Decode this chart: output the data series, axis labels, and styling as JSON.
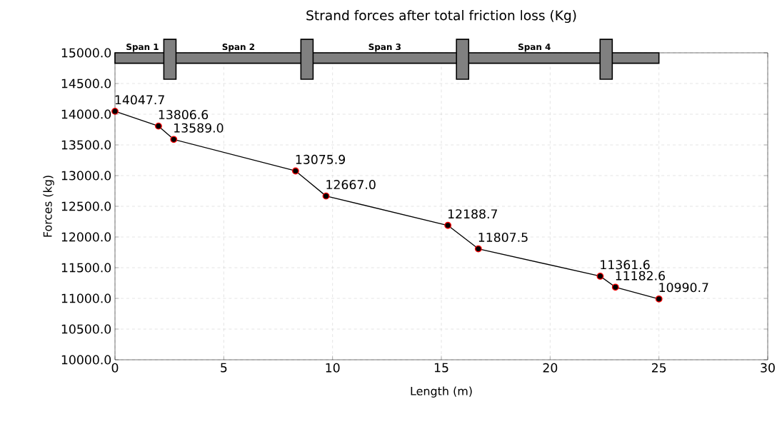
{
  "chart_data": {
    "type": "line",
    "title": "Strand forces after total friction loss (Kg)",
    "xlabel": "Length (m)",
    "ylabel": "Forces (kg)",
    "x": [
      0,
      2.0,
      2.7,
      8.3,
      9.7,
      15.3,
      16.7,
      22.3,
      23.0,
      25.0
    ],
    "values": [
      14047.7,
      13806.6,
      13589.0,
      13075.9,
      12667.0,
      12188.7,
      11807.5,
      11361.6,
      11182.6,
      10990.7
    ],
    "value_labels": [
      "14047.7",
      "13806.6",
      "13589.0",
      "13075.9",
      "12667.0",
      "12188.7",
      "11807.5",
      "11361.6",
      "11182.6",
      "10990.7"
    ],
    "color": "#000000",
    "marker": "circle",
    "line_style": "solid",
    "grid": true,
    "xlim": [
      0,
      30
    ],
    "xticks": [
      0,
      5,
      10,
      15,
      20,
      25,
      30
    ],
    "ylim": [
      10000,
      15000
    ],
    "yticks": [
      {
        "value": 10000,
        "label": "10000.0"
      },
      {
        "value": 10500,
        "label": "10500.0"
      },
      {
        "value": 11000,
        "label": "11000.0"
      },
      {
        "value": 11500,
        "label": "11500.0"
      },
      {
        "value": 12000,
        "label": "12000.0"
      },
      {
        "value": 12500,
        "label": "12500.0"
      },
      {
        "value": 13000,
        "label": "13000.0"
      },
      {
        "value": 13500,
        "label": "13500.0"
      },
      {
        "value": 14000,
        "label": "14000.0"
      },
      {
        "value": 14500,
        "label": "14500.0"
      },
      {
        "value": 15000,
        "label": "15000.0"
      }
    ],
    "annotations": [
      "Span 1",
      "Span 2",
      "Span 3",
      "Span 4"
    ]
  }
}
